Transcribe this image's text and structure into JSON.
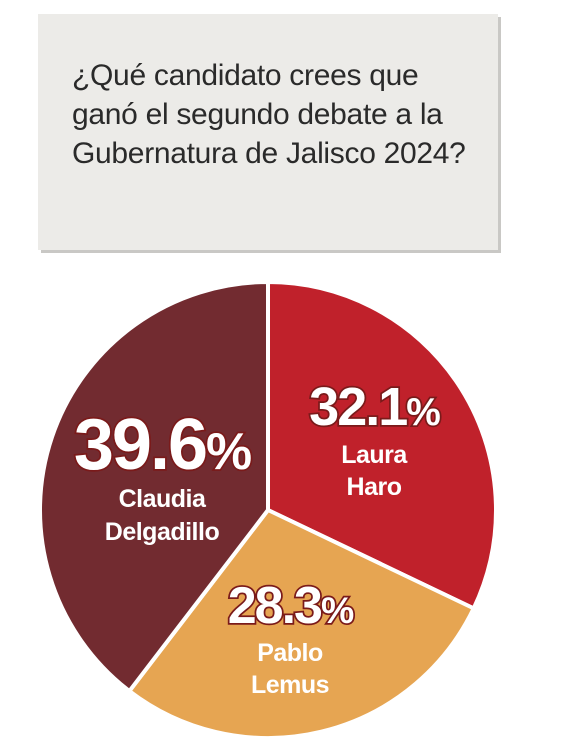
{
  "question": "¿Qué candidato crees que ganó el segundo debate a la Gubernatura de Jalisco 2024?",
  "chart_data": {
    "type": "pie",
    "title": "¿Qué candidato crees que ganó el segundo debate a la Gubernatura de Jalisco 2024?",
    "slices": [
      {
        "name_lines": [
          "Laura",
          "Haro"
        ],
        "value": 32.1,
        "label": "32.1%",
        "color": "#c0212b"
      },
      {
        "name_lines": [
          "Pablo",
          "Lemus"
        ],
        "value": 28.3,
        "label": "28.3%",
        "color": "#e6a552"
      },
      {
        "name_lines": [
          "Claudia",
          "Delgadillo"
        ],
        "value": 39.6,
        "label": "39.6%",
        "color": "#722b30"
      }
    ]
  }
}
